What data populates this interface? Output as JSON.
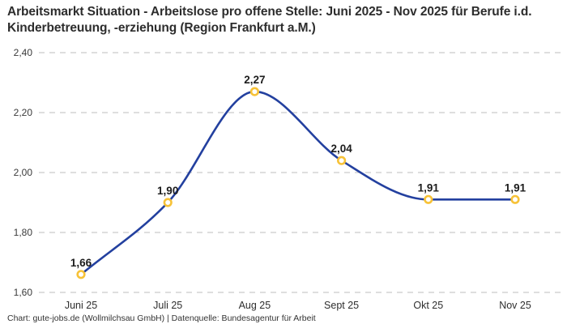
{
  "title": "Arbeitsmarkt Situation - Arbeitslose pro offene Stelle: Juni 2025 - Nov 2025 für Berufe i.d. Kinderbetreuung, -erziehung (Region Frankfurt a.M.)",
  "footer": {
    "credit": "Chart: gute-jobs.de (Wollmilchsau GmbH) | Datenquelle: Bundesagentur für Arbeit"
  },
  "chart_data": {
    "type": "line",
    "title": "Arbeitsmarkt Situation - Arbeitslose pro offene Stelle: Juni 2025 - Nov 2025 für Berufe i.d. Kinderbetreuung, -erziehung (Region Frankfurt a.M.)",
    "categories": [
      "Juni 25",
      "Juli 25",
      "Aug 25",
      "Sept 25",
      "Okt 25",
      "Nov 25"
    ],
    "values": [
      1.66,
      1.9,
      2.27,
      2.04,
      1.91,
      1.91
    ],
    "value_labels": [
      "1,66",
      "1,90",
      "2,27",
      "2,04",
      "1,91",
      "1,91"
    ],
    "xlabel": "",
    "ylabel": "",
    "ylim": [
      1.6,
      2.4
    ],
    "y_tick_values": [
      1.6,
      1.8,
      2.0,
      2.2,
      2.4
    ],
    "y_tick_labels": [
      "1,60",
      "1,80",
      "2,00",
      "2,20",
      "2,40"
    ],
    "grid": "horizontal-dashed",
    "legend_position": "none",
    "curve": "smooth-monotone",
    "line_color": "#23409f",
    "marker_color": "#f7c237",
    "marker_fill": "#ffffff",
    "grid_color": "#c9c9c9",
    "tick_label_color": "#3a3a3a",
    "value_label_color": "#1c1c1c"
  }
}
